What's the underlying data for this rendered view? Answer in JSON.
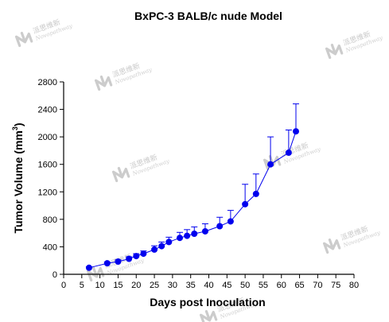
{
  "watermark": {
    "text": "派思维新",
    "sub": "Novopathway"
  },
  "chart_data": {
    "type": "line",
    "title": "BxPC-3 BALB/c nude  Model",
    "xlabel": "Days post Inoculation",
    "ylabel": "Tumor Volume (mm",
    "ylabel_sup": "3",
    "ylabel_end": ")",
    "xlim": [
      0,
      80
    ],
    "ylim": [
      0,
      2800
    ],
    "xticks": [
      0,
      5,
      10,
      15,
      20,
      25,
      30,
      35,
      40,
      45,
      50,
      55,
      60,
      65,
      70,
      75,
      80
    ],
    "yticks": [
      0,
      400,
      800,
      1200,
      1600,
      2000,
      2400,
      2800
    ],
    "grid": false,
    "color": "#0000ee",
    "series": [
      {
        "x": [
          7,
          12,
          15,
          18,
          20,
          22,
          25,
          27,
          29,
          32,
          34,
          36,
          39,
          43,
          46,
          50,
          53,
          57,
          62,
          64
        ],
        "y": [
          95,
          160,
          185,
          225,
          265,
          300,
          360,
          410,
          470,
          530,
          560,
          590,
          625,
          700,
          770,
          1020,
          1170,
          1600,
          1770,
          2080
        ],
        "err": [
          15,
          20,
          25,
          30,
          35,
          40,
          55,
          60,
          70,
          80,
          90,
          100,
          110,
          130,
          160,
          290,
          290,
          400,
          330,
          400
        ]
      }
    ]
  }
}
